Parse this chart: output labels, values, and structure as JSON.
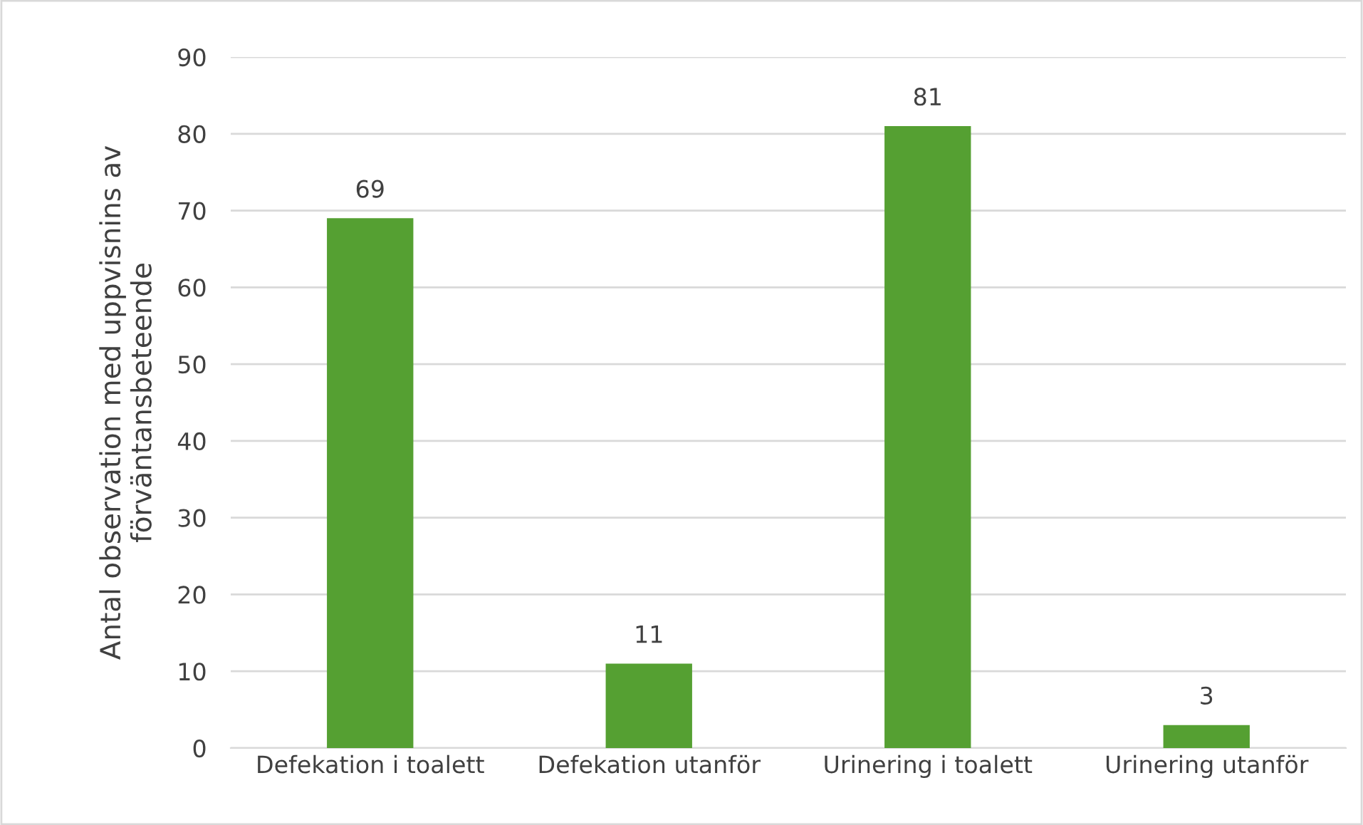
{
  "chart_data": {
    "type": "bar",
    "categories": [
      "Defekation i toalett",
      "Defekation utanför",
      "Urinering i toalett",
      "Urinering utanför"
    ],
    "values": [
      69,
      11,
      81,
      3
    ],
    "color": "#55a032",
    "ylabel": "Antal observation med uppvisnins av\nförväntansbeteende",
    "ylim": [
      0,
      90
    ],
    "yticks": [
      0,
      10,
      20,
      30,
      40,
      50,
      60,
      70,
      80,
      90
    ],
    "grid": "y",
    "data_labels": true,
    "legend": false
  }
}
